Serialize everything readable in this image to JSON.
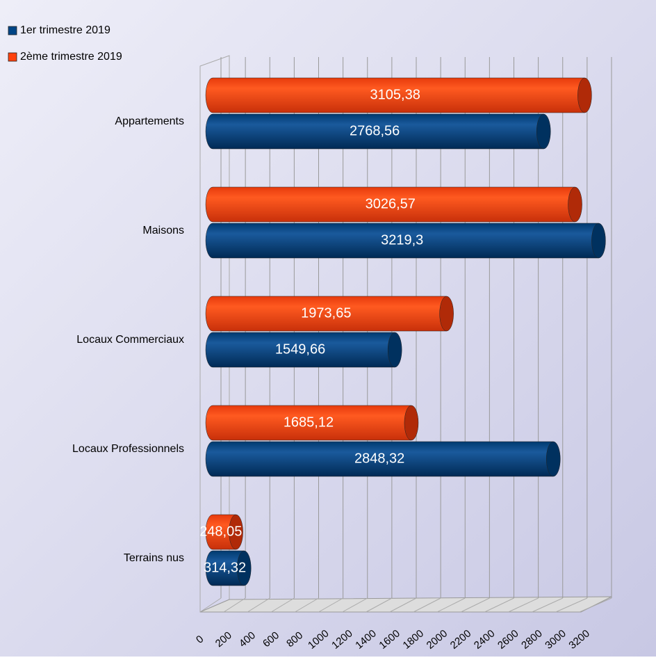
{
  "chart_data": {
    "type": "bar",
    "orientation": "horizontal",
    "categories": [
      "Appartements",
      "Maisons",
      "Locaux Commerciaux",
      "Locaux Professionnels",
      "Terrains nus"
    ],
    "series": [
      {
        "name": "1er trimestre 2019",
        "color": "#004586",
        "values": [
          2768.56,
          3219.3,
          1549.66,
          2848.32,
          314.32
        ],
        "value_labels": [
          "2768,56",
          "3219,3",
          "1549,66",
          "2848,32",
          "314,32"
        ]
      },
      {
        "name": "2ème trimestre 2019",
        "color": "#ff420e",
        "values": [
          3105.38,
          3026.57,
          1973.65,
          1685.12,
          248.05
        ],
        "value_labels": [
          "3105,38",
          "3026,57",
          "1973,65",
          "1685,12",
          "248,05"
        ]
      }
    ],
    "xlim": [
      0,
      3200
    ],
    "xticks": [
      0,
      200,
      400,
      600,
      800,
      1000,
      1200,
      1400,
      1600,
      1800,
      2000,
      2200,
      2400,
      2600,
      2800,
      3000,
      3200
    ],
    "grid": true,
    "legend": "top-left"
  }
}
